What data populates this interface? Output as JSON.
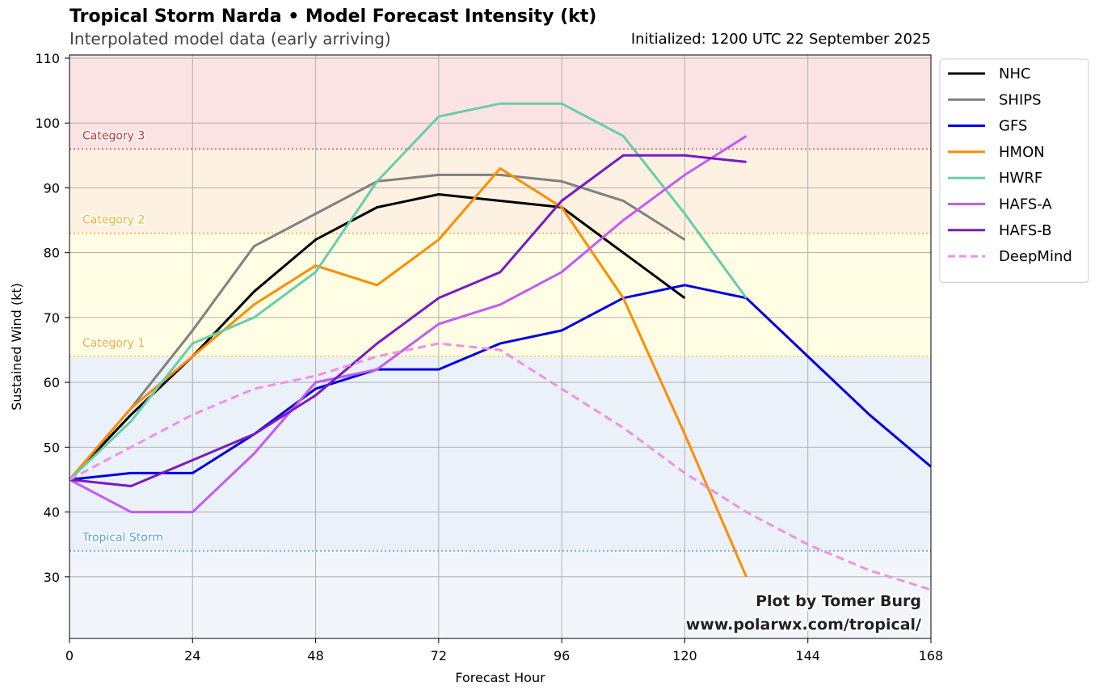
{
  "header": {
    "title": "Tropical Storm Narda • Model Forecast Intensity (kt)",
    "subtitle": "Interpolated model data (early arriving)",
    "initialized": "Initialized: 1200 UTC 22 September 2025"
  },
  "credit": {
    "line1": "Plot by Tomer Burg",
    "line2": "www.polarwx.com/tropical/"
  },
  "chart_data": {
    "type": "line",
    "xlabel": "Forecast Hour",
    "ylabel": "Sustained Wind (kt)",
    "xlim": [
      0,
      168
    ],
    "ylim": [
      20.5,
      110.5
    ],
    "xticks": [
      0,
      24,
      48,
      72,
      96,
      120,
      144,
      168
    ],
    "yticks": [
      30,
      40,
      50,
      60,
      70,
      80,
      90,
      100,
      110
    ],
    "grid": true,
    "legend_placement": "outside-top-right",
    "thresholds": [
      {
        "name": "Tropical Storm",
        "value": 34,
        "color": "#5aa0d8",
        "band_color": "#f2f6fb"
      },
      {
        "name": "Category 1",
        "value": 64,
        "color": "#f0d040",
        "band_color": "#eaf1f8",
        "label_color": "#f0b030"
      },
      {
        "name": "Category 2",
        "value": 83,
        "color": "#f0b040",
        "band_color": "#fffde3",
        "label_color": "#f0b030"
      },
      {
        "name": "Category 3",
        "value": 96,
        "color": "#e05050",
        "band_color": "#fdf2e2",
        "label_color": "#cc3030"
      }
    ],
    "top_band_color": "#fbe3e3",
    "below_ts_band_color": "#f2f6fb",
    "series": [
      {
        "name": "NHC",
        "color": "#000000",
        "dashed": false,
        "x": [
          0,
          12,
          24,
          36,
          48,
          60,
          72,
          84,
          96,
          108,
          120
        ],
        "y": [
          45,
          55,
          64,
          74,
          82,
          87,
          89,
          88,
          87,
          80,
          73
        ]
      },
      {
        "name": "SHIPS",
        "color": "#808080",
        "dashed": false,
        "x": [
          0,
          12,
          24,
          36,
          48,
          60,
          72,
          84,
          96,
          108,
          120
        ],
        "y": [
          45,
          56,
          68,
          81,
          86,
          91,
          92,
          92,
          91,
          88,
          82
        ]
      },
      {
        "name": "GFS",
        "color": "#0000e0",
        "dashed": false,
        "x": [
          0,
          12,
          24,
          36,
          48,
          60,
          72,
          84,
          96,
          108,
          120,
          132,
          144,
          156,
          168
        ],
        "y": [
          45,
          46,
          46,
          52,
          59,
          62,
          62,
          66,
          68,
          73,
          75,
          73,
          64,
          55,
          47
        ]
      },
      {
        "name": "HMON",
        "color": "#ff8c00",
        "dashed": false,
        "x": [
          0,
          12,
          24,
          36,
          48,
          60,
          72,
          84,
          96,
          108,
          120,
          132
        ],
        "y": [
          45,
          56,
          64,
          72,
          78,
          75,
          82,
          93,
          87,
          73,
          52,
          30
        ]
      },
      {
        "name": "HWRF",
        "color": "#66cdaa",
        "dashed": false,
        "x": [
          0,
          12,
          24,
          36,
          48,
          60,
          72,
          84,
          96,
          108,
          120,
          132
        ],
        "y": [
          45,
          54,
          66,
          70,
          77,
          91,
          101,
          103,
          103,
          98,
          86,
          73
        ]
      },
      {
        "name": "HAFS-A",
        "color": "#c25cf0",
        "dashed": false,
        "x": [
          0,
          12,
          24,
          36,
          48,
          60,
          72,
          84,
          96,
          108,
          120,
          132
        ],
        "y": [
          45,
          40,
          40,
          49,
          60,
          62,
          69,
          72,
          77,
          85,
          92,
          98
        ]
      },
      {
        "name": "HAFS-B",
        "color": "#7a1ac0",
        "dashed": false,
        "x": [
          0,
          12,
          24,
          36,
          48,
          60,
          72,
          84,
          96,
          108,
          120,
          132
        ],
        "y": [
          45,
          44,
          48,
          52,
          58,
          66,
          73,
          77,
          88,
          95,
          95,
          94
        ]
      },
      {
        "name": "DeepMind",
        "color": "#ee90e8",
        "dashed": true,
        "x": [
          0,
          12,
          24,
          36,
          48,
          60,
          72,
          84,
          96,
          108,
          120,
          132,
          144,
          156,
          168
        ],
        "y": [
          45,
          50,
          55,
          59,
          61,
          64,
          66,
          65,
          59,
          53,
          46,
          40,
          35,
          31,
          28
        ]
      }
    ]
  }
}
